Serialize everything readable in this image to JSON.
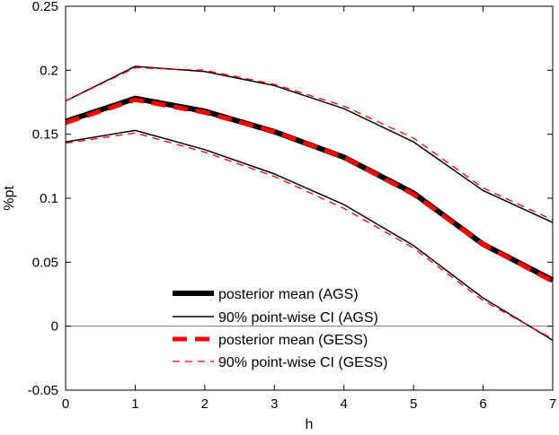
{
  "chart_data": {
    "type": "line",
    "title": "",
    "xlabel": "h",
    "ylabel": "%pt",
    "xlim": [
      0,
      7
    ],
    "ylim": [
      -0.05,
      0.25
    ],
    "x": [
      0,
      1,
      2,
      3,
      4,
      5,
      6,
      7
    ],
    "xticks": [
      "0",
      "1",
      "2",
      "3",
      "4",
      "5",
      "6",
      "7"
    ],
    "yticks": [
      "-0.05",
      "0",
      "0.05",
      "0.1",
      "0.15",
      "0.2",
      "0.25"
    ],
    "ytick_values": [
      -0.05,
      0,
      0.05,
      0.1,
      0.15,
      0.2,
      0.25
    ],
    "zero_line": true,
    "legend_position": "bottom-center",
    "series": [
      {
        "name": "posterior mean (AGS)",
        "style": "thick-solid",
        "color": "#000000",
        "values": [
          0.16,
          0.178,
          0.168,
          0.152,
          0.132,
          0.104,
          0.064,
          0.036
        ]
      },
      {
        "name": "90% point-wise CI (AGS)",
        "style": "thin-solid",
        "color": "#000000",
        "band": {
          "upper": [
            0.176,
            0.203,
            0.199,
            0.188,
            0.17,
            0.144,
            0.106,
            0.081
          ],
          "lower": [
            0.144,
            0.153,
            0.138,
            0.119,
            0.095,
            0.063,
            0.022,
            -0.011
          ]
        }
      },
      {
        "name": "posterior mean (GESS)",
        "style": "thick-dashed",
        "color": "#ff0000",
        "values": [
          0.159,
          0.177,
          0.167,
          0.152,
          0.132,
          0.103,
          0.064,
          0.035
        ]
      },
      {
        "name": "90% point-wise CI (GESS)",
        "style": "thin-dashed",
        "color": "#ff0000",
        "band": {
          "upper": [
            0.176,
            0.202,
            0.2,
            0.189,
            0.172,
            0.147,
            0.108,
            0.083
          ],
          "lower": [
            0.143,
            0.151,
            0.136,
            0.117,
            0.092,
            0.061,
            0.02,
            -0.01
          ]
        }
      }
    ]
  }
}
